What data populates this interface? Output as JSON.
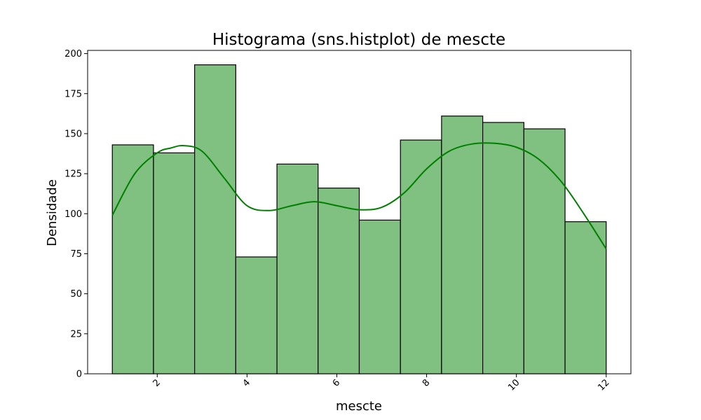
{
  "chart_data": {
    "type": "bar",
    "title": "Histograma (sns.histplot) de mescte",
    "xlabel": "mescte",
    "ylabel": "Densidade",
    "xlim": [
      0.45,
      12.55
    ],
    "ylim": [
      0,
      202
    ],
    "xticks": [
      2,
      4,
      6,
      8,
      10,
      12
    ],
    "yticks": [
      0,
      25,
      50,
      75,
      100,
      125,
      150,
      175,
      200
    ],
    "xtick_rotation": 45,
    "bins": [
      {
        "start": 1.0,
        "end": 1.917,
        "value": 143
      },
      {
        "start": 1.917,
        "end": 2.833,
        "value": 138
      },
      {
        "start": 2.833,
        "end": 3.75,
        "value": 193
      },
      {
        "start": 3.75,
        "end": 4.667,
        "value": 73
      },
      {
        "start": 4.667,
        "end": 5.583,
        "value": 131
      },
      {
        "start": 5.583,
        "end": 6.5,
        "value": 116
      },
      {
        "start": 6.5,
        "end": 7.417,
        "value": 96
      },
      {
        "start": 7.417,
        "end": 8.333,
        "value": 146
      },
      {
        "start": 8.333,
        "end": 9.25,
        "value": 161
      },
      {
        "start": 9.25,
        "end": 10.167,
        "value": 157
      },
      {
        "start": 10.167,
        "end": 11.083,
        "value": 153
      },
      {
        "start": 11.083,
        "end": 12.0,
        "value": 95
      }
    ],
    "kde": {
      "x": [
        1.0,
        1.5,
        2.0,
        2.3,
        2.6,
        3.0,
        3.5,
        4.0,
        4.5,
        5.0,
        5.5,
        6.0,
        6.5,
        7.0,
        7.5,
        8.0,
        8.5,
        9.0,
        9.5,
        10.0,
        10.5,
        11.0,
        11.5,
        12.0
      ],
      "y": [
        99,
        125,
        138,
        141,
        142.5,
        139,
        122,
        105,
        102,
        105,
        107.5,
        105,
        102.5,
        104,
        113,
        128,
        139,
        143.5,
        144,
        141.5,
        134,
        120,
        100,
        78
      ]
    },
    "bar_fill": "#80c080",
    "bar_edge": "#000000",
    "kde_color": "#008000",
    "grid": false,
    "legend": "none"
  }
}
